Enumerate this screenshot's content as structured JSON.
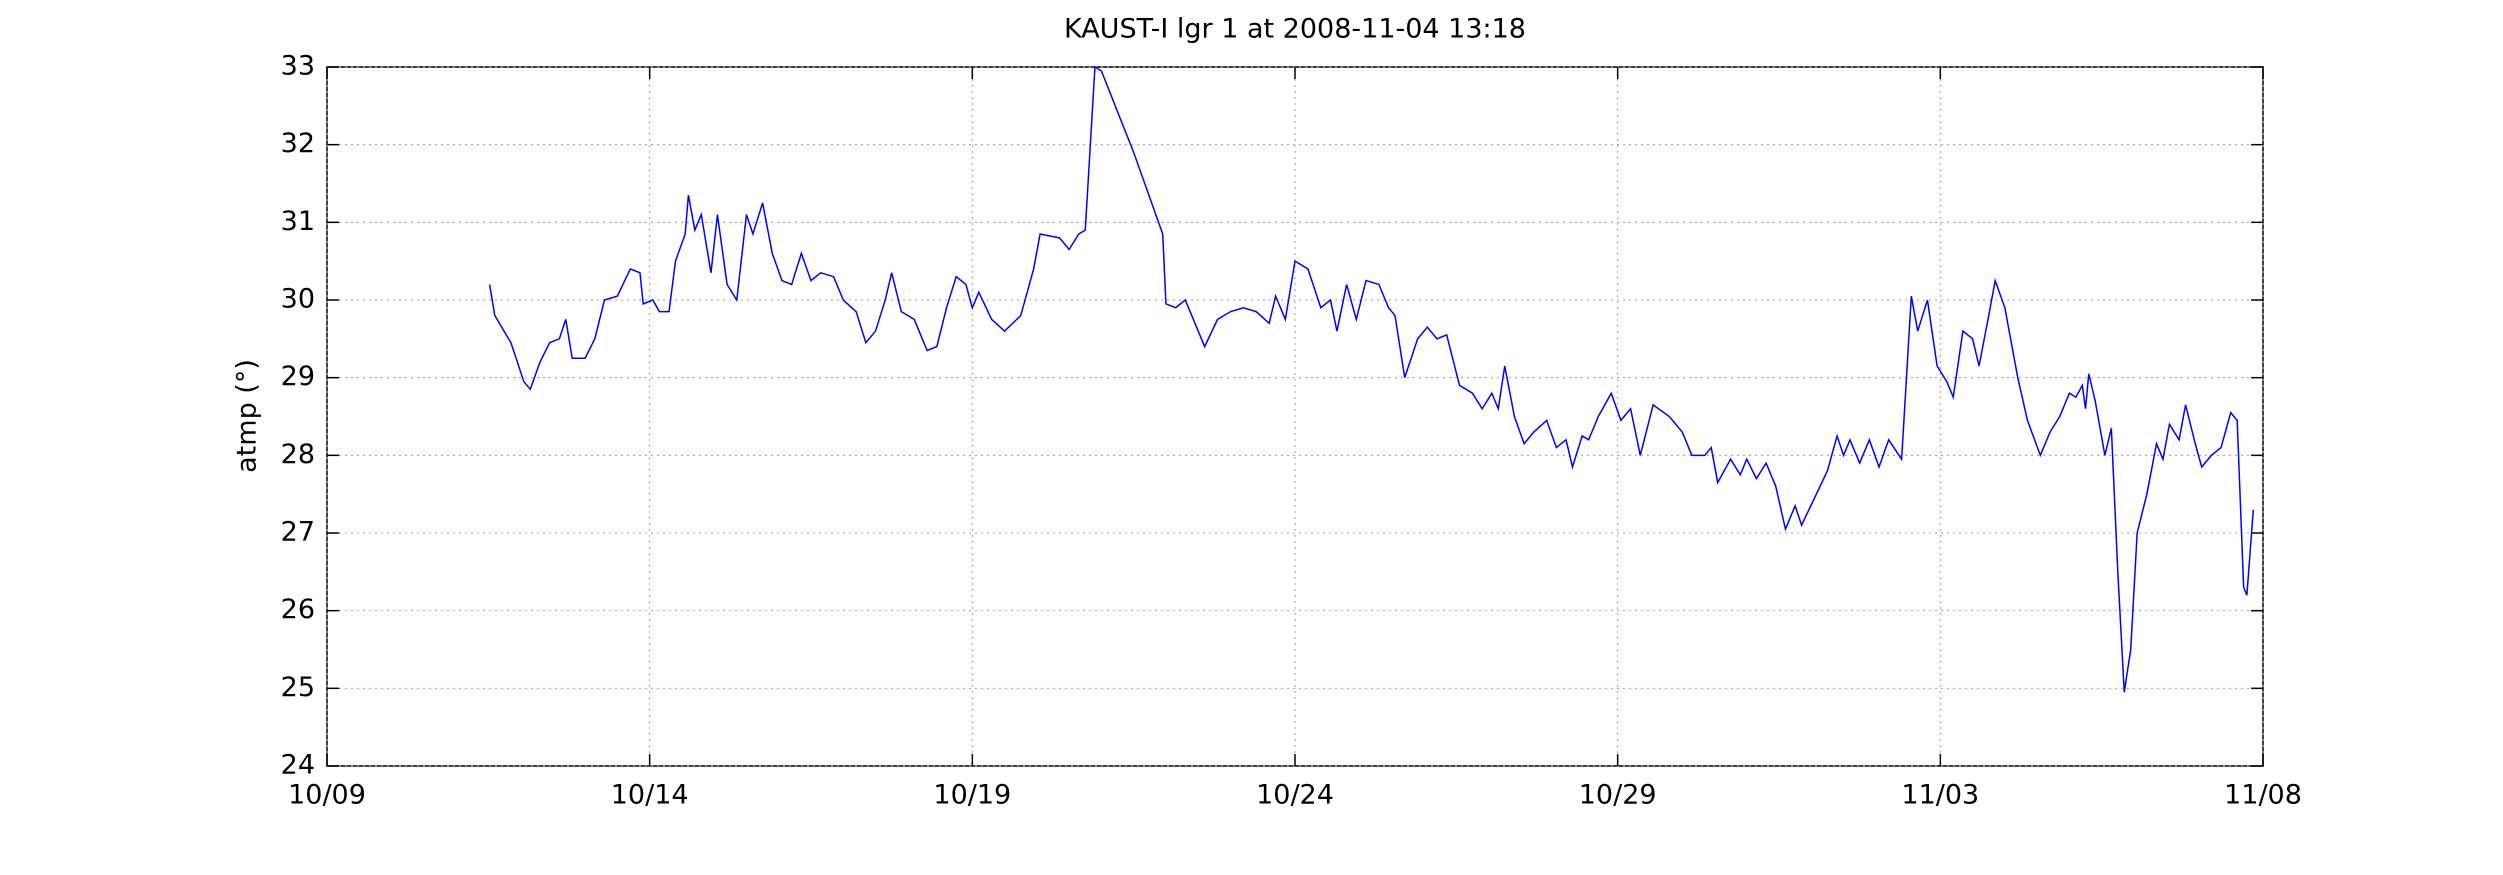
{
  "chart_data": {
    "type": "line",
    "title": "KAUST-I lgr 1 at 2008-11-04 13:18",
    "ylabel": "atmp (°)",
    "x": [
      2.52,
      2.6,
      2.85,
      3.05,
      3.15,
      3.3,
      3.45,
      3.6,
      3.7,
      3.8,
      4.0,
      4.15,
      4.3,
      4.5,
      4.7,
      4.85,
      4.9,
      5.05,
      5.15,
      5.3,
      5.4,
      5.55,
      5.6,
      5.7,
      5.8,
      5.95,
      6.05,
      6.2,
      6.35,
      6.5,
      6.6,
      6.75,
      6.9,
      7.05,
      7.2,
      7.35,
      7.5,
      7.65,
      7.85,
      8.0,
      8.2,
      8.35,
      8.5,
      8.65,
      8.75,
      8.9,
      9.1,
      9.3,
      9.45,
      9.6,
      9.75,
      9.9,
      10.0,
      10.1,
      10.3,
      10.5,
      10.75,
      10.95,
      11.05,
      11.35,
      11.5,
      11.65,
      11.75,
      11.9,
      12.0,
      12.5,
      12.95,
      13.0,
      13.15,
      13.3,
      13.45,
      13.6,
      13.8,
      14.0,
      14.2,
      14.4,
      14.6,
      14.7,
      14.85,
      15.0,
      15.2,
      15.4,
      15.55,
      15.65,
      15.8,
      15.95,
      16.1,
      16.3,
      16.45,
      16.55,
      16.7,
      16.9,
      17.05,
      17.2,
      17.35,
      17.55,
      17.75,
      17.9,
      18.05,
      18.15,
      18.25,
      18.4,
      18.55,
      18.7,
      18.9,
      19.05,
      19.2,
      19.3,
      19.45,
      19.55,
      19.7,
      19.9,
      20.05,
      20.2,
      20.35,
      20.55,
      20.8,
      21.0,
      21.15,
      21.35,
      21.45,
      21.55,
      21.75,
      21.9,
      22.0,
      22.15,
      22.3,
      22.45,
      22.6,
      22.75,
      22.85,
      23.05,
      23.25,
      23.4,
      23.5,
      23.6,
      23.75,
      23.9,
      24.05,
      24.2,
      24.4,
      24.55,
      24.65,
      24.8,
      24.95,
      25.1,
      25.2,
      25.35,
      25.5,
      25.6,
      25.75,
      25.85,
      26.0,
      26.2,
      26.35,
      26.55,
      26.7,
      26.85,
      27.0,
      27.1,
      27.2,
      27.25,
      27.3,
      27.4,
      27.55,
      27.65,
      27.75,
      27.85,
      27.95,
      28.05,
      28.2,
      28.35,
      28.45,
      28.55,
      28.7,
      28.8,
      28.95,
      29.05,
      29.2,
      29.35,
      29.5,
      29.6,
      29.7,
      29.75,
      29.85
    ],
    "series": [
      {
        "color": "#0000ff",
        "values": [
          30.2,
          29.8,
          29.45,
          28.95,
          28.85,
          29.2,
          29.45,
          29.5,
          29.75,
          29.25,
          29.25,
          29.5,
          30.0,
          30.05,
          30.4,
          30.35,
          29.95,
          30.0,
          29.85,
          29.85,
          30.5,
          30.85,
          31.35,
          30.9,
          31.1,
          30.35,
          31.1,
          30.2,
          30.0,
          31.1,
          30.85,
          31.25,
          30.6,
          30.25,
          30.2,
          30.6,
          30.25,
          30.35,
          30.3,
          30.0,
          29.85,
          29.45,
          29.6,
          30.0,
          30.35,
          29.85,
          29.75,
          29.35,
          29.4,
          29.9,
          30.3,
          30.2,
          29.9,
          30.1,
          29.75,
          29.6,
          29.8,
          30.4,
          30.85,
          30.8,
          30.65,
          30.85,
          30.9,
          33.0,
          32.95,
          31.9,
          30.85,
          29.95,
          29.9,
          30.0,
          29.7,
          29.4,
          29.75,
          29.85,
          29.9,
          29.85,
          29.7,
          30.05,
          29.75,
          30.5,
          30.4,
          29.9,
          30.0,
          29.6,
          30.2,
          29.75,
          30.25,
          30.2,
          29.9,
          29.8,
          29.0,
          29.5,
          29.65,
          29.5,
          29.55,
          28.9,
          28.8,
          28.6,
          28.8,
          28.6,
          29.15,
          28.5,
          28.15,
          28.3,
          28.45,
          28.1,
          28.2,
          27.85,
          28.25,
          28.2,
          28.5,
          28.8,
          28.45,
          28.6,
          28.0,
          28.65,
          28.5,
          28.3,
          28.0,
          28.0,
          28.1,
          27.65,
          27.95,
          27.75,
          27.95,
          27.7,
          27.9,
          27.6,
          27.05,
          27.35,
          27.1,
          27.45,
          27.8,
          28.25,
          28.0,
          28.2,
          27.9,
          28.2,
          27.85,
          28.2,
          27.95,
          30.05,
          29.6,
          30.0,
          29.15,
          28.95,
          28.75,
          29.6,
          29.5,
          29.15,
          29.8,
          30.25,
          29.9,
          29.0,
          28.45,
          28.0,
          28.3,
          28.5,
          28.8,
          28.75,
          28.9,
          28.6,
          29.05,
          28.7,
          28.0,
          28.35,
          26.5,
          24.95,
          25.5,
          27.0,
          27.5,
          28.15,
          27.95,
          28.4,
          28.2,
          28.65,
          28.15,
          27.85,
          28.0,
          28.1,
          28.55,
          28.45,
          26.3,
          26.2,
          27.3
        ]
      }
    ],
    "xlim": [
      0,
      30
    ],
    "xticks": [
      {
        "value": 0,
        "label": "10/09"
      },
      {
        "value": 5,
        "label": "10/14"
      },
      {
        "value": 10,
        "label": "10/19"
      },
      {
        "value": 15,
        "label": "10/24"
      },
      {
        "value": 20,
        "label": "10/29"
      },
      {
        "value": 25,
        "label": "11/03"
      },
      {
        "value": 30,
        "label": "11/08"
      }
    ],
    "ylim": [
      24,
      33
    ],
    "yticks": [
      24,
      25,
      26,
      27,
      28,
      29,
      30,
      31,
      32,
      33
    ],
    "grid": true
  }
}
